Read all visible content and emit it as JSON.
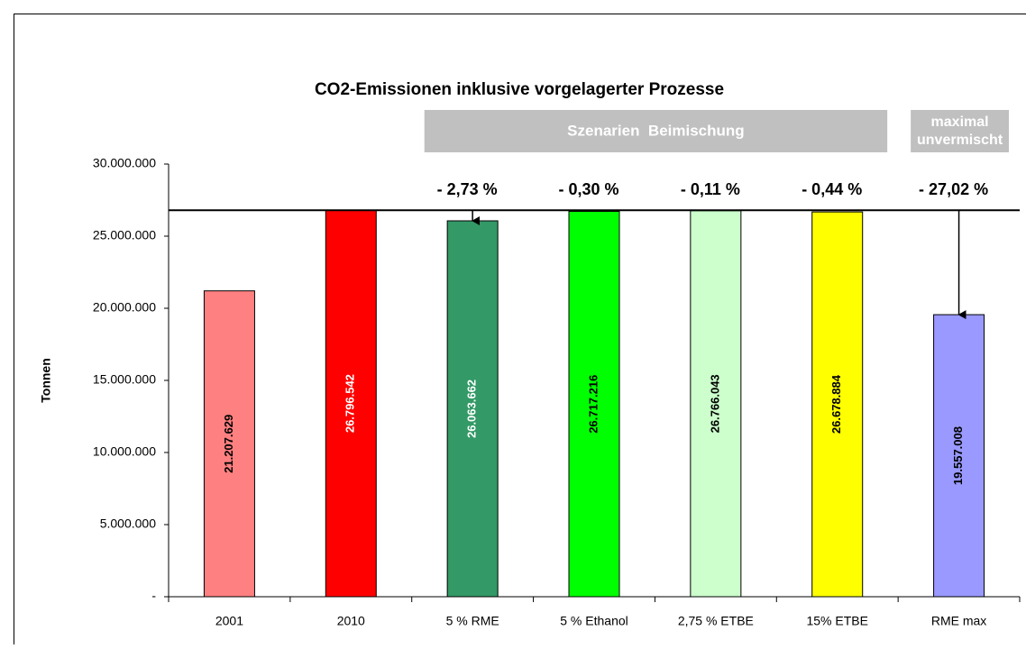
{
  "chart_data": {
    "type": "bar",
    "title": "CO2-Emissionen inklusive vorgelagerter Prozesse",
    "y_label": "Tonnen",
    "categories": [
      "2001",
      "2010",
      "5 % RME",
      "5 % Ethanol",
      "2,75 % ETBE",
      "15% ETBE",
      "RME max"
    ],
    "values": [
      21207629,
      26796542,
      26063662,
      26717216,
      26766043,
      26678884,
      19557008
    ],
    "value_labels": [
      "21.207.629",
      "26.796.542",
      "26.063.662",
      "26.717.216",
      "26.766.043",
      "26.678.884",
      "19.557.008"
    ],
    "colors": [
      "#ff8080",
      "#ff0000",
      "#339966",
      "#00ff00",
      "#ccffcc",
      "#ffff00",
      "#9999ff"
    ],
    "label_colors": [
      "#000000",
      "#ffffff",
      "#ffffff",
      "#000000",
      "#000000",
      "#000000",
      "#000000"
    ],
    "change_labels": [
      null,
      null,
      "- 2,73 %",
      "- 0,30 %",
      "- 0,11 %",
      "- 0,44 %",
      "- 27,02 %"
    ],
    "arrows": [
      false,
      false,
      true,
      false,
      false,
      false,
      true
    ],
    "groups": [
      {
        "label": "Szenarien  Beimischung",
        "from": 2,
        "to": 5
      },
      {
        "label": "maximal unvermischt",
        "from": 6,
        "to": 6
      }
    ],
    "ylim": [
      0,
      30000000
    ],
    "yticks": [
      {
        "value": 0,
        "label": "-"
      },
      {
        "value": 5000000,
        "label": "5.000.000"
      },
      {
        "value": 10000000,
        "label": "10.000.000"
      },
      {
        "value": 15000000,
        "label": "15.000.000"
      },
      {
        "value": 20000000,
        "label": "20.000.000"
      },
      {
        "value": 25000000,
        "label": "25.000.000"
      },
      {
        "value": 30000000,
        "label": "30.000.000"
      }
    ],
    "grid": false
  }
}
